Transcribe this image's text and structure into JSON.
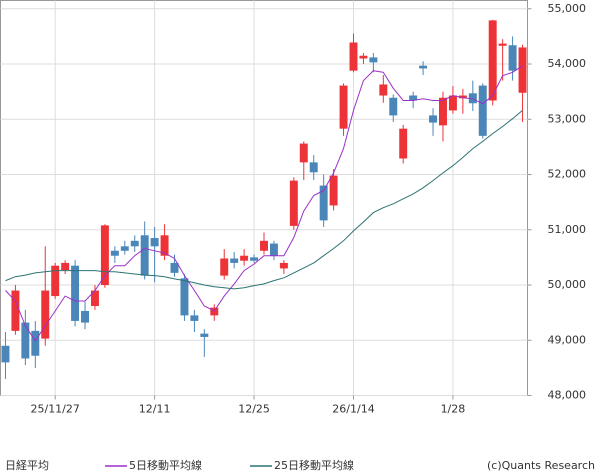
{
  "chart_data": {
    "type": "candlestick",
    "categories": [
      null,
      null,
      null,
      null,
      null,
      "25/11/27",
      null,
      null,
      null,
      null,
      null,
      null,
      null,
      null,
      null,
      "12/11",
      null,
      null,
      null,
      null,
      null,
      null,
      null,
      null,
      null,
      "12/25",
      null,
      null,
      null,
      null,
      null,
      null,
      null,
      null,
      null,
      "26/1/14",
      null,
      null,
      null,
      null,
      null,
      null,
      null,
      null,
      null,
      "1/28",
      null,
      null,
      null,
      null,
      null,
      null,
      null
    ],
    "candles": {
      "name": "日経平均",
      "up_color": "#ee3338",
      "down_color": "#4a86b8",
      "open": [
        48900,
        49170,
        49320,
        49170,
        49030,
        49800,
        50270,
        50350,
        49530,
        49620,
        50000,
        50620,
        50700,
        50800,
        50900,
        50850,
        50530,
        50400,
        50120,
        49450,
        49120,
        49450,
        50170,
        50480,
        50440,
        50500,
        50620,
        50750,
        50300,
        51070,
        52220,
        52220,
        51800,
        51440,
        52830,
        53880,
        54100,
        54120,
        53430,
        53390,
        52290,
        53430,
        53970,
        53070,
        52890,
        53160,
        53380,
        53470,
        53610,
        53340,
        54330,
        54340,
        53480
      ],
      "high": [
        49150,
        50000,
        49550,
        49350,
        50700,
        50400,
        50450,
        50450,
        49700,
        50000,
        51100,
        50700,
        50800,
        50900,
        51150,
        51050,
        51100,
        50550,
        50200,
        49550,
        49200,
        49650,
        50650,
        50600,
        50650,
        50550,
        50950,
        50800,
        50450,
        51950,
        52600,
        52350,
        52000,
        52100,
        53650,
        54550,
        54200,
        54200,
        53800,
        53450,
        52900,
        53500,
        54050,
        53200,
        53500,
        53600,
        53550,
        53700,
        53650,
        54800,
        54450,
        54500,
        54350
      ],
      "low": [
        48300,
        49100,
        48550,
        48500,
        48900,
        49750,
        50200,
        49250,
        49200,
        49550,
        49950,
        50400,
        50550,
        50600,
        50100,
        50050,
        50450,
        50150,
        49350,
        49150,
        48700,
        49350,
        50100,
        50300,
        50350,
        50400,
        50550,
        50450,
        50200,
        51000,
        51900,
        51900,
        51050,
        51350,
        52700,
        53850,
        54000,
        53850,
        53300,
        52950,
        52200,
        53200,
        53800,
        52700,
        52600,
        53100,
        53100,
        53150,
        52650,
        53250,
        53700,
        53700,
        52950
      ],
      "close": [
        48600,
        49900,
        48670,
        48720,
        49900,
        50350,
        50400,
        49350,
        49320,
        49900,
        51080,
        50530,
        50620,
        50700,
        50170,
        50700,
        50900,
        50220,
        49450,
        49350,
        49060,
        49590,
        50480,
        50400,
        50530,
        50440,
        50800,
        50530,
        50400,
        51890,
        52560,
        52040,
        51170,
        51980,
        53610,
        54390,
        54150,
        54030,
        53630,
        53070,
        52830,
        53340,
        53920,
        52940,
        53390,
        53430,
        53430,
        53290,
        52700,
        54790,
        54370,
        53880,
        54300
      ]
    },
    "series": [
      {
        "name": "5日移動平均線",
        "color": "#9b30c8",
        "values": [
          49900,
          49710,
          49260,
          48990,
          49260,
          49530,
          49800,
          49710,
          49710,
          49900,
          50170,
          50350,
          50350,
          50530,
          50660,
          50620,
          50580,
          50480,
          50170,
          49900,
          49620,
          49530,
          49800,
          50020,
          50260,
          50380,
          50530,
          50530,
          50530,
          50860,
          51340,
          51620,
          51710,
          52030,
          52470,
          53160,
          53700,
          53880,
          53850,
          53560,
          53340,
          53340,
          53370,
          53340,
          53340,
          53430,
          53390,
          53370,
          53280,
          53430,
          53790,
          53850,
          53970
        ]
      },
      {
        "name": "25日移動平均線",
        "color": "#2c7373",
        "values": [
          50080,
          50150,
          50180,
          50220,
          50240,
          50260,
          50260,
          50260,
          50260,
          50260,
          50240,
          50240,
          50220,
          50200,
          50180,
          50170,
          50150,
          50110,
          50080,
          50040,
          50000,
          49970,
          49950,
          49930,
          49950,
          49990,
          50020,
          50080,
          50130,
          50220,
          50310,
          50400,
          50530,
          50660,
          50800,
          50980,
          51140,
          51310,
          51400,
          51470,
          51560,
          51650,
          51760,
          51890,
          52030,
          52160,
          52310,
          52470,
          52600,
          52740,
          52870,
          53010,
          53160
        ]
      }
    ],
    "ylim": [
      48000,
      55150
    ],
    "yticks": [
      {
        "value": 48000,
        "label": "48,000"
      },
      {
        "value": 49000,
        "label": "49,000"
      },
      {
        "value": 50000,
        "label": "50,000"
      },
      {
        "value": 51000,
        "label": "51,000"
      },
      {
        "value": 52000,
        "label": "52,000"
      },
      {
        "value": 53000,
        "label": "53,000"
      },
      {
        "value": 54000,
        "label": "54,000"
      },
      {
        "value": 55000,
        "label": "55,000"
      }
    ],
    "grid": true,
    "credit": "(c)Quants Research"
  }
}
